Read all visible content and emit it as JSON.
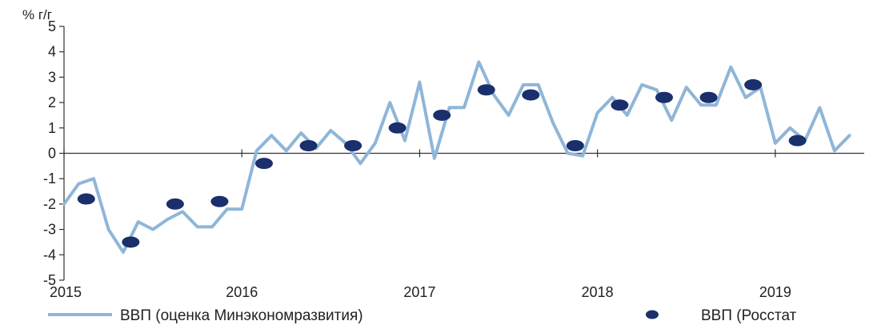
{
  "chart_data": {
    "type": "line",
    "ylabel": "% г/г",
    "ylim": [
      -5,
      5
    ],
    "yticks": [
      "5",
      "4",
      "3",
      "2",
      "1",
      "0",
      "-1",
      "-2",
      "-3",
      "-4",
      "-5"
    ],
    "xlim": [
      2015,
      2019.5
    ],
    "xticks": [
      "2015",
      "2016",
      "2017",
      "2018",
      "2019"
    ],
    "grid": false,
    "legend_position": "bottom",
    "colors": {
      "line": "#8fb6d8",
      "dots": "#1a2f6b",
      "axis": "#333333"
    },
    "series": [
      {
        "name": "ВВП (оценка Минэкономразвития)",
        "kind": "line",
        "x": [
          2015.0,
          2015.083,
          2015.167,
          2015.25,
          2015.333,
          2015.417,
          2015.5,
          2015.583,
          2015.667,
          2015.75,
          2015.833,
          2015.917,
          2016.0,
          2016.083,
          2016.167,
          2016.25,
          2016.333,
          2016.417,
          2016.5,
          2016.583,
          2016.667,
          2016.75,
          2016.833,
          2016.917,
          2017.0,
          2017.083,
          2017.167,
          2017.25,
          2017.333,
          2017.417,
          2017.5,
          2017.583,
          2017.667,
          2017.75,
          2017.833,
          2017.917,
          2018.0,
          2018.083,
          2018.167,
          2018.25,
          2018.333,
          2018.417,
          2018.5,
          2018.583,
          2018.667,
          2018.75,
          2018.833,
          2018.917,
          2019.0,
          2019.083,
          2019.167,
          2019.25,
          2019.333,
          2019.417
        ],
        "y": [
          -2.0,
          -1.2,
          -1.0,
          -3.0,
          -3.9,
          -2.7,
          -3.0,
          -2.6,
          -2.3,
          -2.9,
          -2.9,
          -2.2,
          -2.2,
          0.1,
          0.7,
          0.1,
          0.8,
          0.2,
          0.9,
          0.4,
          -0.4,
          0.4,
          2.0,
          0.5,
          2.8,
          -0.2,
          1.8,
          1.8,
          3.6,
          2.3,
          1.5,
          2.7,
          2.7,
          1.2,
          0.0,
          -0.1,
          1.6,
          2.2,
          1.5,
          2.7,
          2.5,
          1.3,
          2.6,
          1.9,
          1.9,
          3.4,
          2.2,
          2.6,
          0.4,
          1.0,
          0.5,
          1.8,
          0.1,
          0.7
        ]
      },
      {
        "name": "ВВП (Росстат",
        "kind": "scatter",
        "x": [
          2015.125,
          2015.375,
          2015.625,
          2015.875,
          2016.125,
          2016.375,
          2016.625,
          2016.875,
          2017.125,
          2017.375,
          2017.625,
          2017.875,
          2018.125,
          2018.375,
          2018.625,
          2018.875,
          2019.125
        ],
        "y": [
          -1.8,
          -3.5,
          -2.0,
          -1.9,
          -0.4,
          0.3,
          0.3,
          1.0,
          1.5,
          2.5,
          2.3,
          0.3,
          1.9,
          2.2,
          2.2,
          2.7,
          0.5
        ]
      }
    ]
  }
}
